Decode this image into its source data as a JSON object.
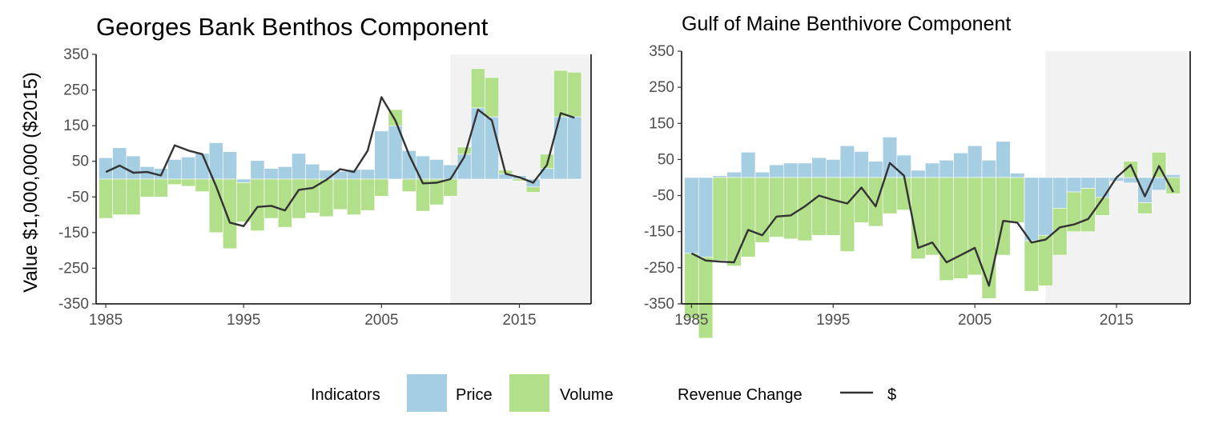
{
  "ylabel": "Value $1,000,000 ($2015)",
  "colors": {
    "price": "#a6cee3",
    "volume": "#b2df8a",
    "line": "#333333",
    "shade": "#f2f2f2"
  },
  "legend": {
    "indicators_title": "Indicators",
    "price_label": "Price",
    "volume_label": "Volume",
    "revenue_title": "Revenue Change",
    "revenue_label": "$"
  },
  "chart_data": [
    {
      "type": "bar",
      "title": "Georges Bank Benthos Component",
      "ylim": [
        -350,
        350
      ],
      "yticks": [
        350,
        250,
        150,
        50,
        -50,
        -150,
        -250,
        -350
      ],
      "xlim": [
        1984.3,
        2020.2
      ],
      "xticks": [
        1985,
        1995,
        2005,
        2015
      ],
      "shaded_from": 2010,
      "years": [
        1985,
        1986,
        1987,
        1988,
        1989,
        1990,
        1991,
        1992,
        1993,
        1994,
        1995,
        1996,
        1997,
        1998,
        1999,
        2000,
        2001,
        2002,
        2003,
        2004,
        2005,
        2006,
        2007,
        2008,
        2009,
        2010,
        2011,
        2012,
        2013,
        2014,
        2015,
        2016,
        2017,
        2018,
        2019
      ],
      "series": [
        {
          "name": "Price",
          "values": [
            60,
            88,
            65,
            35,
            30,
            55,
            62,
            72,
            102,
            77,
            -10,
            52,
            30,
            35,
            72,
            42,
            25,
            22,
            27,
            27,
            135,
            150,
            80,
            65,
            55,
            40,
            70,
            200,
            175,
            15,
            10,
            -22,
            30,
            175,
            175
          ]
        },
        {
          "name": "Volume",
          "values": [
            -110,
            -100,
            -100,
            -50,
            -50,
            -15,
            -20,
            -35,
            -150,
            -195,
            -110,
            -145,
            -110,
            -135,
            -110,
            -95,
            -105,
            -85,
            -100,
            -88,
            -48,
            45,
            -35,
            -90,
            -72,
            -48,
            20,
            110,
            110,
            10,
            -5,
            -15,
            40,
            130,
            125
          ]
        },
        {
          "name": "$",
          "values": [
            20,
            38,
            18,
            20,
            10,
            95,
            80,
            70,
            -20,
            -122,
            -132,
            -78,
            -75,
            -88,
            -30,
            -25,
            -2,
            28,
            20,
            80,
            230,
            165,
            68,
            -12,
            -10,
            0,
            62,
            195,
            165,
            15,
            5,
            -10,
            40,
            185,
            172
          ]
        }
      ]
    },
    {
      "type": "bar",
      "title": "Gulf of Maine Benthivore Component",
      "ylim": [
        -350,
        350
      ],
      "yticks": [
        350,
        250,
        150,
        50,
        -50,
        -150,
        -250,
        -350
      ],
      "xlim": [
        1984.3,
        2020.2
      ],
      "xticks": [
        1985,
        1995,
        2005,
        2015
      ],
      "shaded_from": 2010,
      "years": [
        1985,
        1986,
        1987,
        1988,
        1989,
        1990,
        1991,
        1992,
        1993,
        1994,
        1995,
        1996,
        1997,
        1998,
        1999,
        2000,
        2001,
        2002,
        2003,
        2004,
        2005,
        2006,
        2007,
        2008,
        2009,
        2010,
        2011,
        2012,
        2013,
        2014,
        2015,
        2016,
        2017,
        2018,
        2019
      ],
      "series": [
        {
          "name": "Price",
          "values": [
            -210,
            -220,
            5,
            15,
            70,
            15,
            35,
            40,
            40,
            55,
            50,
            88,
            72,
            45,
            112,
            62,
            20,
            40,
            48,
            68,
            88,
            48,
            100,
            12,
            -175,
            -160,
            -85,
            -40,
            -30,
            -55,
            -10,
            -15,
            -70,
            -35,
            8
          ]
        },
        {
          "name": "Volume",
          "values": [
            -180,
            -225,
            -230,
            -245,
            -220,
            -180,
            -165,
            -170,
            -175,
            -160,
            -160,
            -205,
            -125,
            -135,
            -100,
            -90,
            -225,
            -215,
            -285,
            -280,
            -270,
            -335,
            -215,
            -125,
            -140,
            -140,
            -130,
            -110,
            -120,
            -50,
            0,
            45,
            -30,
            70,
            -45
          ]
        },
        {
          "name": "$",
          "values": [
            -210,
            -230,
            -233,
            -235,
            -145,
            -160,
            -108,
            -105,
            -80,
            -50,
            -62,
            -72,
            -28,
            -80,
            40,
            5,
            -195,
            -180,
            -235,
            -215,
            -195,
            -300,
            -120,
            -125,
            -180,
            -172,
            -138,
            -130,
            -115,
            -60,
            0,
            35,
            -52,
            32,
            -40
          ]
        }
      ]
    }
  ]
}
